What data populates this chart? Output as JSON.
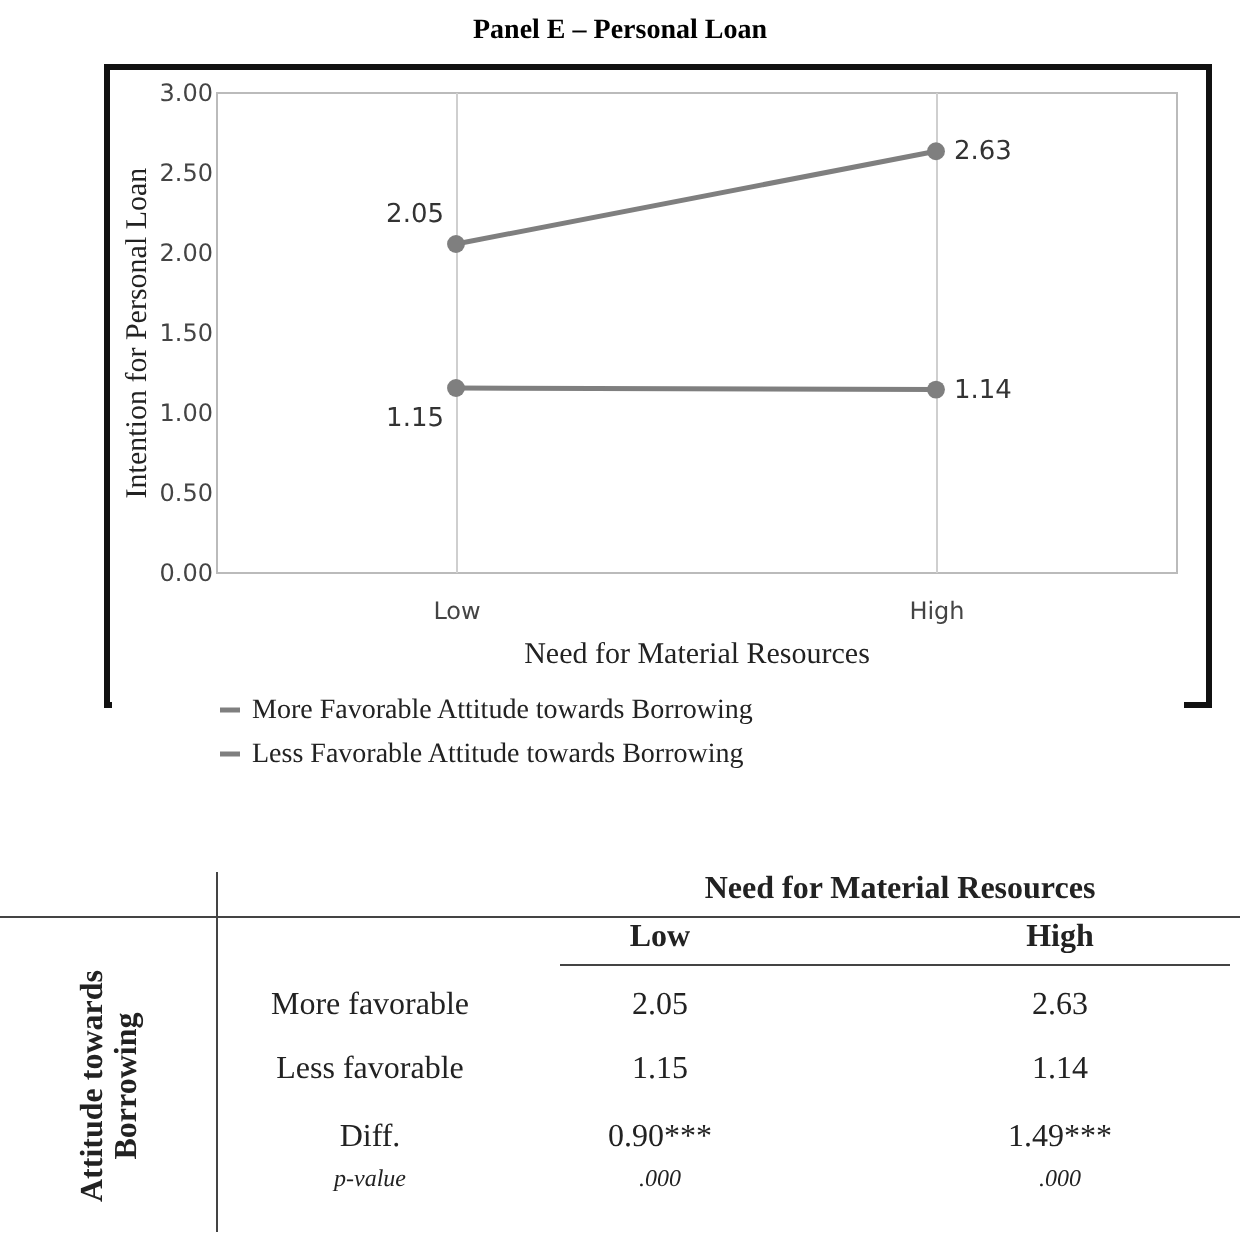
{
  "chart_data": {
    "type": "line",
    "title": "Panel E – Personal Loan",
    "categories": [
      "Low",
      "High"
    ],
    "xlabel": "Need for Material Resources",
    "ylabel": "Intention for Personal Loan",
    "series": [
      {
        "name": "More Favorable Attitude towards Borrowing",
        "color": "#7f7f7f",
        "values": [
          2.05,
          2.63
        ],
        "value_labels": [
          "2.05",
          "2.63"
        ]
      },
      {
        "name": "Less Favorable Attitude towards Borrowing",
        "color": "#7f7f7f",
        "values": [
          1.15,
          1.14
        ],
        "value_labels": [
          "1.15",
          "1.14"
        ]
      }
    ],
    "ylim": [
      0,
      3
    ],
    "yticks": [
      {
        "value": 0,
        "label": "0.00"
      },
      {
        "value": 0.5,
        "label": "0.50"
      },
      {
        "value": 1,
        "label": "1.00"
      },
      {
        "value": 1.5,
        "label": "1.50"
      },
      {
        "value": 2,
        "label": "2.00"
      },
      {
        "value": 2.5,
        "label": "2.50"
      },
      {
        "value": 3,
        "label": "3.00"
      }
    ],
    "grid": "x",
    "marker": "circle",
    "line_style": "solid",
    "legend": "bottom",
    "annotations": [
      "Attitude towards Borrowing",
      "More favorable",
      "Less favorable",
      "Diff.",
      "0.90***",
      "1.49***",
      "p-value",
      ".000",
      ".000",
      "2.05",
      "2.63",
      "1.15",
      "1.14"
    ]
  }
}
